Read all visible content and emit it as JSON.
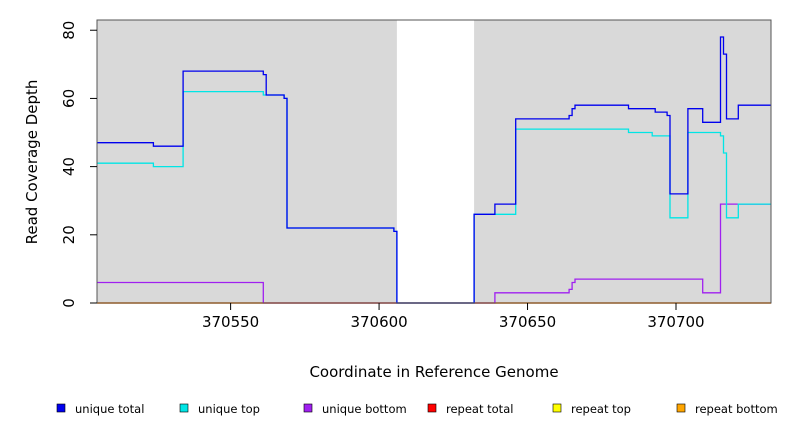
{
  "chart_data": {
    "type": "line",
    "xlabel": "Coordinate in Reference Genome",
    "ylabel": "Read Coverage Depth",
    "xlim": [
      370505,
      370732
    ],
    "ylim": [
      0,
      83
    ],
    "x_ticks": [
      370550,
      370600,
      370650,
      370700
    ],
    "y_ticks": [
      0,
      20,
      40,
      60,
      80
    ],
    "shaded_regions": [
      [
        370505,
        370606
      ],
      [
        370632,
        370732
      ]
    ],
    "legend_position": "bottom",
    "series": [
      {
        "name": "unique total",
        "color": "#0000ee",
        "points": [
          [
            370505,
            47
          ],
          [
            370524,
            47
          ],
          [
            370524,
            46
          ],
          [
            370534,
            46
          ],
          [
            370534,
            68
          ],
          [
            370561,
            68
          ],
          [
            370561,
            67
          ],
          [
            370562,
            67
          ],
          [
            370562,
            61
          ],
          [
            370568,
            61
          ],
          [
            370568,
            60
          ],
          [
            370569,
            60
          ],
          [
            370569,
            22
          ],
          [
            370605,
            22
          ],
          [
            370605,
            21
          ],
          [
            370606,
            21
          ],
          [
            370606,
            0
          ],
          [
            370632,
            0
          ],
          [
            370632,
            26
          ],
          [
            370639,
            26
          ],
          [
            370639,
            29
          ],
          [
            370646,
            29
          ],
          [
            370646,
            54
          ],
          [
            370664,
            54
          ],
          [
            370664,
            55
          ],
          [
            370665,
            55
          ],
          [
            370665,
            57
          ],
          [
            370666,
            57
          ],
          [
            370666,
            58
          ],
          [
            370684,
            58
          ],
          [
            370684,
            57
          ],
          [
            370693,
            57
          ],
          [
            370693,
            56
          ],
          [
            370697,
            56
          ],
          [
            370697,
            55
          ],
          [
            370698,
            55
          ],
          [
            370698,
            32
          ],
          [
            370704,
            32
          ],
          [
            370704,
            57
          ],
          [
            370709,
            57
          ],
          [
            370709,
            53
          ],
          [
            370715,
            53
          ],
          [
            370715,
            78
          ],
          [
            370716,
            78
          ],
          [
            370716,
            73
          ],
          [
            370717,
            73
          ],
          [
            370717,
            54
          ],
          [
            370721,
            54
          ],
          [
            370721,
            58
          ],
          [
            370732,
            58
          ]
        ]
      },
      {
        "name": "unique top",
        "color": "#00e5e5",
        "points": [
          [
            370505,
            41
          ],
          [
            370524,
            41
          ],
          [
            370524,
            40
          ],
          [
            370534,
            40
          ],
          [
            370534,
            62
          ],
          [
            370561,
            62
          ],
          [
            370561,
            61
          ],
          [
            370568,
            61
          ],
          [
            370568,
            60
          ],
          [
            370569,
            60
          ],
          [
            370569,
            22
          ],
          [
            370605,
            22
          ],
          [
            370605,
            21
          ],
          [
            370606,
            21
          ],
          [
            370606,
            0
          ],
          [
            370632,
            0
          ],
          [
            370632,
            26
          ],
          [
            370646,
            26
          ],
          [
            370646,
            51
          ],
          [
            370684,
            51
          ],
          [
            370684,
            50
          ],
          [
            370692,
            50
          ],
          [
            370692,
            49
          ],
          [
            370698,
            49
          ],
          [
            370698,
            25
          ],
          [
            370704,
            25
          ],
          [
            370704,
            50
          ],
          [
            370715,
            50
          ],
          [
            370715,
            49
          ],
          [
            370716,
            49
          ],
          [
            370716,
            44
          ],
          [
            370717,
            44
          ],
          [
            370717,
            25
          ],
          [
            370721,
            25
          ],
          [
            370721,
            29
          ],
          [
            370732,
            29
          ]
        ]
      },
      {
        "name": "unique bottom",
        "color": "#a020f0",
        "points": [
          [
            370505,
            6
          ],
          [
            370561,
            6
          ],
          [
            370561,
            0
          ],
          [
            370639,
            0
          ],
          [
            370639,
            3
          ],
          [
            370664,
            3
          ],
          [
            370664,
            4
          ],
          [
            370665,
            4
          ],
          [
            370665,
            6
          ],
          [
            370666,
            6
          ],
          [
            370666,
            7
          ],
          [
            370709,
            7
          ],
          [
            370709,
            3
          ],
          [
            370715,
            3
          ],
          [
            370715,
            29
          ],
          [
            370732,
            29
          ]
        ]
      },
      {
        "name": "repeat total",
        "color": "#ff0000",
        "points": [
          [
            370505,
            0
          ],
          [
            370732,
            0
          ]
        ]
      },
      {
        "name": "repeat top",
        "color": "#ffff00",
        "points": [
          [
            370505,
            0
          ],
          [
            370732,
            0
          ]
        ]
      },
      {
        "name": "repeat bottom",
        "color": "#ffa500",
        "points": [
          [
            370505,
            0
          ],
          [
            370732,
            0
          ]
        ]
      }
    ]
  }
}
